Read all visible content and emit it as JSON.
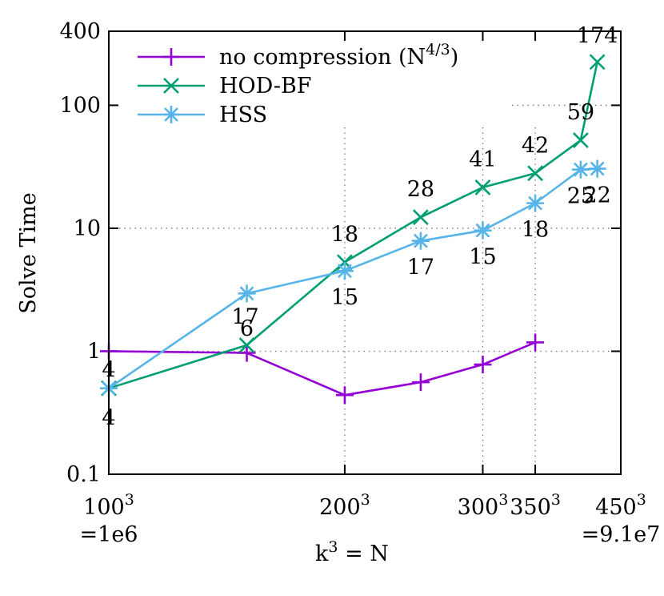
{
  "chart_data": {
    "type": "line",
    "xlabel_base": "k",
    "xlabel_exp": "3",
    "xlabel_tail": " = N",
    "ylabel": "Solve Time",
    "x_scale": "log",
    "y_scale": "log",
    "xlim": [
      1000000,
      91125000
    ],
    "ylim": [
      0.1,
      400
    ],
    "grid": "dotted",
    "legend_position": "top-left",
    "x_ticks": [
      {
        "value": 1000000,
        "base": "100",
        "exp": "3",
        "sub": "=1e6"
      },
      {
        "value": 8000000,
        "base": "200",
        "exp": "3",
        "sub": ""
      },
      {
        "value": 27000000,
        "base": "300",
        "exp": "3",
        "sub": ""
      },
      {
        "value": 42875000,
        "base": "350",
        "exp": "3",
        "sub": ""
      },
      {
        "value": 91125000,
        "base": "450",
        "exp": "3",
        "sub": "=9.1e7"
      }
    ],
    "y_ticks": [
      {
        "value": 0.1,
        "label": "0.1"
      },
      {
        "value": 1,
        "label": "1"
      },
      {
        "value": 10,
        "label": "10"
      },
      {
        "value": 100,
        "label": "100"
      },
      {
        "value": 400,
        "label": "400"
      }
    ],
    "series": [
      {
        "name_base": "no compression (N",
        "name_exp": "4/3",
        "name_tail": ")",
        "color": "#9400D3",
        "marker": "plus",
        "x": [
          1000000,
          3375000,
          8000000,
          15625000,
          27000000,
          42875000
        ],
        "y": [
          1.0,
          0.97,
          0.44,
          0.56,
          0.78,
          1.18
        ],
        "labels": [
          "",
          "",
          "",
          "",
          "",
          ""
        ]
      },
      {
        "name_base": "HOD-BF",
        "name_exp": "",
        "name_tail": "",
        "color": "#009E73",
        "marker": "cross",
        "x": [
          1000000,
          3375000,
          8000000,
          15625000,
          27000000,
          42875000,
          64000000,
          74088000
        ],
        "y": [
          0.5,
          1.12,
          5.3,
          12.3,
          21.5,
          28,
          52,
          225
        ],
        "labels": [
          "4",
          "6",
          "18",
          "28",
          "41",
          "42",
          "59",
          "174"
        ]
      },
      {
        "name_base": "HSS",
        "name_exp": "",
        "name_tail": "",
        "color": "#56B4E9",
        "marker": "star",
        "x": [
          1000000,
          3375000,
          8000000,
          15625000,
          27000000,
          42875000,
          64000000,
          74088000
        ],
        "y": [
          0.5,
          2.95,
          4.5,
          7.9,
          9.6,
          16,
          30,
          30.5
        ],
        "labels": [
          "4",
          "17",
          "15",
          "17",
          "15",
          "18",
          "25",
          "22"
        ]
      }
    ]
  }
}
